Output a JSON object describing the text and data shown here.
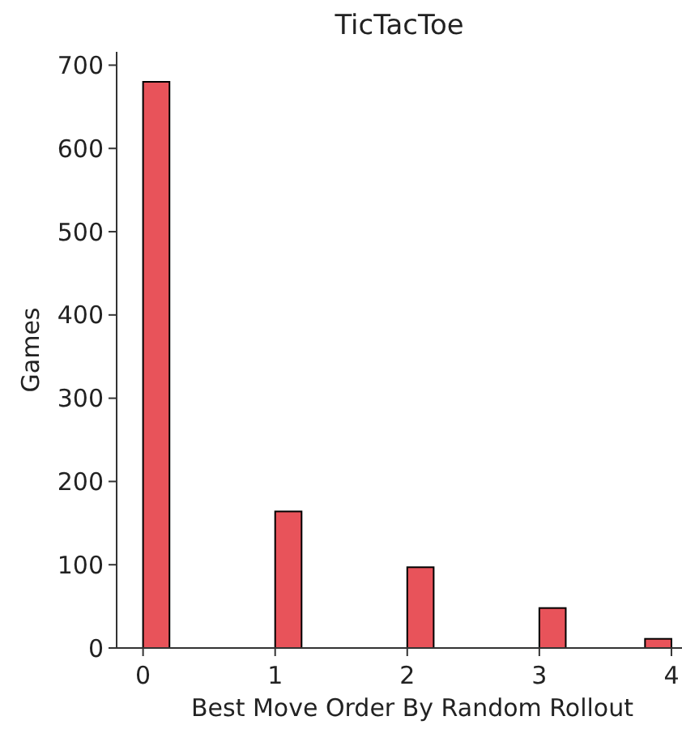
{
  "chart_data": {
    "type": "histogram",
    "title": "TicTacToe",
    "xlabel": "Best Move Order By Random Rollout",
    "ylabel": "Games",
    "bins": [
      0,
      0.2,
      0.4,
      0.6,
      0.8,
      1,
      1.2,
      1.4,
      1.6,
      1.8,
      2,
      2.2,
      2.4,
      2.6,
      2.8,
      3,
      3.2,
      3.4,
      3.6,
      3.8,
      4
    ],
    "values": [
      680,
      0,
      0,
      0,
      0,
      164,
      0,
      0,
      0,
      0,
      97,
      0,
      0,
      0,
      0,
      48,
      0,
      0,
      0,
      11
    ],
    "color": "#e8535a",
    "xlim": [
      -0.2,
      4.08
    ],
    "xticks": [
      0,
      1,
      2,
      3,
      4
    ],
    "ylim": [
      0,
      716
    ],
    "yticks": [
      0,
      100,
      200,
      300,
      400,
      500,
      600,
      700
    ],
    "grid": false
  }
}
